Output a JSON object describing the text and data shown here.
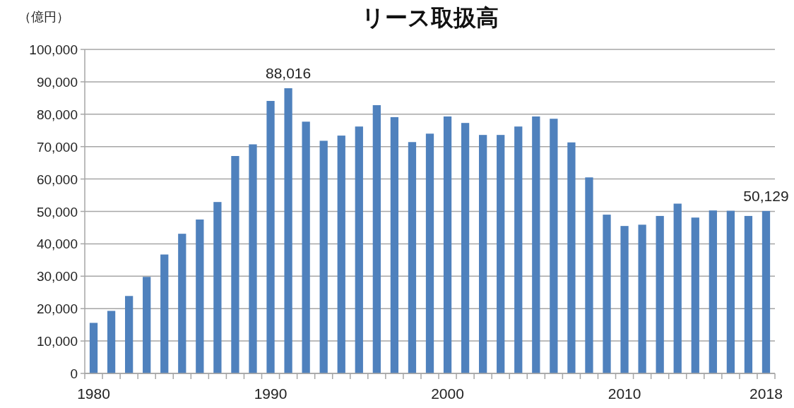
{
  "chart_data": {
    "type": "bar",
    "title": "リース取扱高",
    "ylabel": "（億円）",
    "categories": [
      "1980",
      null,
      null,
      null,
      null,
      null,
      null,
      null,
      null,
      null,
      "1990",
      null,
      null,
      null,
      null,
      null,
      null,
      null,
      null,
      null,
      "2000",
      null,
      null,
      null,
      null,
      null,
      null,
      null,
      null,
      null,
      "2010",
      null,
      null,
      null,
      null,
      null,
      null,
      null,
      "2018"
    ],
    "values": [
      15600,
      19300,
      23900,
      29800,
      36700,
      43100,
      47500,
      52900,
      67100,
      70700,
      84100,
      88016,
      77700,
      71800,
      73400,
      76200,
      82800,
      79100,
      71400,
      74000,
      79300,
      77300,
      73600,
      73600,
      76200,
      79300,
      78600,
      71300,
      60500,
      49000,
      45500,
      45900,
      48600,
      52400,
      48100,
      50300,
      50200,
      48600,
      50129
    ],
    "value_labels": [
      null,
      null,
      null,
      null,
      null,
      null,
      null,
      null,
      null,
      null,
      null,
      "88,016",
      null,
      null,
      null,
      null,
      null,
      null,
      null,
      null,
      null,
      null,
      null,
      null,
      null,
      null,
      null,
      null,
      null,
      null,
      null,
      null,
      null,
      null,
      null,
      null,
      null,
      null,
      "50,129"
    ],
    "color": "#4f81bd",
    "ylim": [
      0,
      100000
    ],
    "yticks": [
      {
        "value": 0,
        "label": "0"
      },
      {
        "value": 10000,
        "label": "10,000"
      },
      {
        "value": 20000,
        "label": "20,000"
      },
      {
        "value": 30000,
        "label": "30,000"
      },
      {
        "value": 40000,
        "label": "40,000"
      },
      {
        "value": 50000,
        "label": "50,000"
      },
      {
        "value": 60000,
        "label": "60,000"
      },
      {
        "value": 70000,
        "label": "70,000"
      },
      {
        "value": 80000,
        "label": "80,000"
      },
      {
        "value": 90000,
        "label": "90,000"
      },
      {
        "value": 100000,
        "label": "100,000"
      }
    ],
    "grid": "y"
  }
}
